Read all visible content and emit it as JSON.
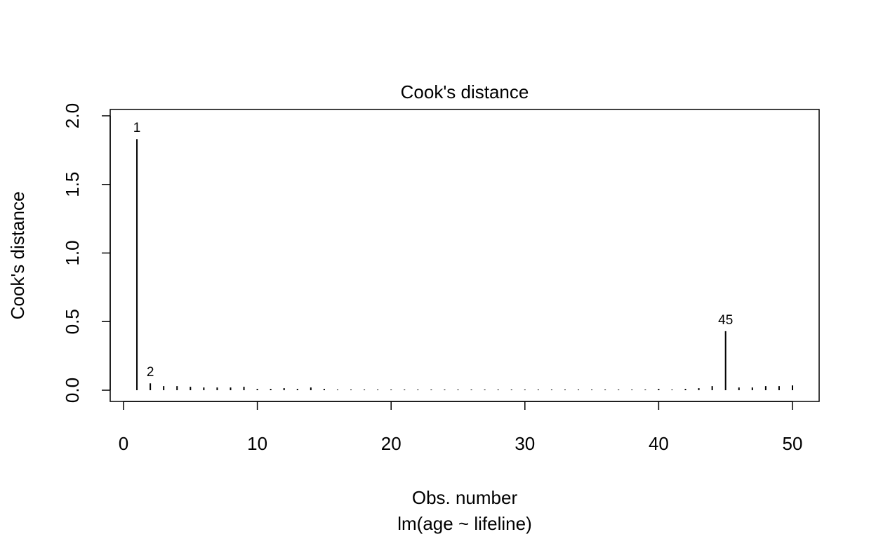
{
  "chart_data": {
    "type": "bar",
    "title": "Cook's distance",
    "xlabel": "Obs. number",
    "ylabel": "Cook's distance",
    "subtitle": "lm(age ~ lifeline)",
    "xlim": [
      0,
      50
    ],
    "ylim": [
      0,
      2.0
    ],
    "x_ticks": [
      "0",
      "10",
      "20",
      "30",
      "40",
      "50"
    ],
    "y_ticks": [
      "0.0",
      "0.5",
      "1.0",
      "1.5",
      "2.0"
    ],
    "grid": false,
    "legend": "none",
    "x": [
      1,
      2,
      3,
      4,
      5,
      6,
      7,
      8,
      9,
      10,
      11,
      12,
      13,
      14,
      15,
      16,
      17,
      18,
      19,
      20,
      21,
      22,
      23,
      24,
      25,
      26,
      27,
      28,
      29,
      30,
      31,
      32,
      33,
      34,
      35,
      36,
      37,
      38,
      39,
      40,
      41,
      42,
      43,
      44,
      45,
      46,
      47,
      48,
      49,
      50
    ],
    "values": [
      1.83,
      0.05,
      0.03,
      0.03,
      0.025,
      0.02,
      0.02,
      0.02,
      0.025,
      0.01,
      0.01,
      0.015,
      0.01,
      0.02,
      0.01,
      0.005,
      0.005,
      0.005,
      0.005,
      0.005,
      0.005,
      0.005,
      0.005,
      0.005,
      0.005,
      0.005,
      0.005,
      0.005,
      0.005,
      0.005,
      0.005,
      0.005,
      0.005,
      0.005,
      0.005,
      0.005,
      0.005,
      0.005,
      0.005,
      0.01,
      0.005,
      0.01,
      0.015,
      0.03,
      0.43,
      0.02,
      0.02,
      0.03,
      0.03,
      0.035
    ],
    "labeled_points": [
      {
        "x": 1,
        "label": "1"
      },
      {
        "x": 2,
        "label": "2"
      },
      {
        "x": 45,
        "label": "45"
      }
    ]
  }
}
